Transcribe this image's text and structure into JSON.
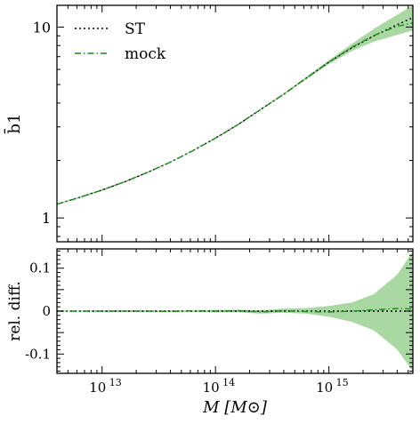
{
  "chart_data": [
    {
      "type": "line",
      "panel": "top",
      "xlabel": "M   [M⊙]",
      "ylabel": "b̄1",
      "x_scale": "log",
      "y_scale": "log",
      "xlim": [
        4000000000000.0,
        5500000000000000.0
      ],
      "ylim": [
        0.75,
        13.0
      ],
      "yticks_labeled": [
        {
          "value": 1,
          "label": "1"
        },
        {
          "value": 10,
          "label": "10"
        }
      ],
      "legend": {
        "position": "top-left",
        "entries": [
          {
            "label": "ST",
            "style": "dotted",
            "color": "#000000"
          },
          {
            "label": "mock",
            "style": "dashdot",
            "color": "#1a8c1a"
          }
        ]
      },
      "x": [
        4000000000000.0,
        6300000000000.0,
        10000000000000.0,
        16000000000000.0,
        25000000000000.0,
        40000000000000.0,
        63000000000000.0,
        100000000000000.0,
        160000000000000.0,
        250000000000000.0,
        400000000000000.0,
        630000000000000.0,
        1000000000000000.0,
        1600000000000000.0,
        2500000000000000.0,
        4000000000000000.0,
        5500000000000000.0
      ],
      "series": [
        {
          "name": "ST",
          "values": [
            1.18,
            1.28,
            1.4,
            1.55,
            1.73,
            1.96,
            2.25,
            2.62,
            3.1,
            3.7,
            4.45,
            5.4,
            6.55,
            7.8,
            9.0,
            10.3,
            11.2
          ]
        },
        {
          "name": "mock",
          "values": [
            1.18,
            1.28,
            1.4,
            1.55,
            1.73,
            1.96,
            2.25,
            2.62,
            3.1,
            3.7,
            4.45,
            5.4,
            6.55,
            7.85,
            9.05,
            10.1,
            10.5
          ]
        }
      ],
      "band": {
        "color": "#a9d8a3",
        "lower": [
          1.17,
          1.27,
          1.39,
          1.54,
          1.72,
          1.95,
          2.24,
          2.61,
          3.08,
          3.68,
          4.4,
          5.32,
          6.4,
          7.5,
          8.4,
          9.1,
          9.6
        ],
        "upper": [
          1.19,
          1.29,
          1.41,
          1.56,
          1.74,
          1.97,
          2.26,
          2.63,
          3.12,
          3.72,
          4.5,
          5.48,
          6.7,
          8.2,
          9.8,
          11.6,
          13.0
        ]
      }
    },
    {
      "type": "line",
      "panel": "bottom",
      "xlabel": "M   [M⊙]",
      "ylabel": "rel. diff.",
      "x_scale": "log",
      "xlim": [
        4000000000000.0,
        5500000000000000.0
      ],
      "ylim": [
        -0.145,
        0.145
      ],
      "yticks_labeled": [
        {
          "value": 0.1,
          "label": "0.1"
        },
        {
          "value": 0,
          "label": "0"
        },
        {
          "value": -0.1,
          "label": "-0.1"
        }
      ],
      "xticks_labeled": [
        {
          "value": 10000000000000.0,
          "base": "10",
          "exp": "13"
        },
        {
          "value": 100000000000000.0,
          "base": "10",
          "exp": "14"
        },
        {
          "value": 1000000000000000.0,
          "base": "10",
          "exp": "15"
        }
      ],
      "x": [
        4000000000000.0,
        6300000000000.0,
        10000000000000.0,
        16000000000000.0,
        25000000000000.0,
        40000000000000.0,
        63000000000000.0,
        100000000000000.0,
        160000000000000.0,
        250000000000000.0,
        400000000000000.0,
        630000000000000.0,
        1000000000000000.0,
        1600000000000000.0,
        2500000000000000.0,
        4000000000000000.0,
        5500000000000000.0
      ],
      "series": [
        {
          "name": "ST",
          "values": [
            0,
            0,
            0,
            0,
            0,
            0,
            0,
            0,
            0,
            0,
            0,
            0,
            0,
            0,
            0,
            0,
            0
          ]
        },
        {
          "name": "mock",
          "values": [
            0,
            0,
            0,
            0,
            0,
            -0.001,
            0.001,
            0,
            0.001,
            -0.002,
            0.001,
            -0.001,
            -0.002,
            0,
            0.003,
            0.006,
            0.005
          ]
        }
      ],
      "band": {
        "color": "#a9d8a3",
        "lower": [
          -0.001,
          -0.001,
          -0.001,
          -0.001,
          -0.001,
          -0.002,
          -0.002,
          -0.003,
          -0.003,
          -0.006,
          -0.004,
          -0.006,
          -0.013,
          -0.025,
          -0.045,
          -0.09,
          -0.14
        ],
        "upper": [
          0.001,
          0.001,
          0.001,
          0.001,
          0.001,
          0.002,
          0.002,
          0.003,
          0.003,
          0.002,
          0.006,
          0.007,
          0.012,
          0.02,
          0.04,
          0.085,
          0.14
        ]
      }
    }
  ]
}
